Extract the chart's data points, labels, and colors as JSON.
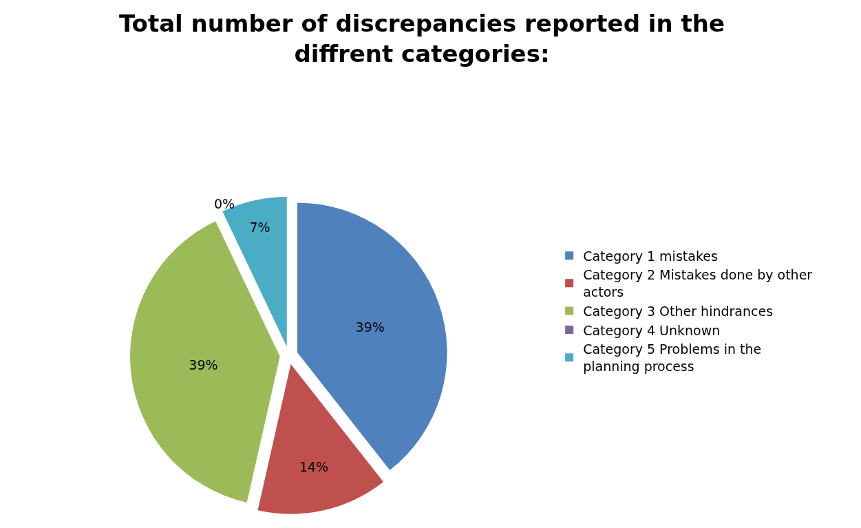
{
  "chart_data": {
    "type": "pie",
    "title": "Total number of discrepancies reported in the diffrent categories:",
    "categories": [
      "Category 1 mistakes",
      "Category 2 Mistakes done by other actors",
      "Category 3 Other hindrances",
      "Category 4 Unknown",
      "Category 5 Problems in the planning process"
    ],
    "values": [
      39,
      14,
      39,
      0,
      7
    ],
    "value_labels": [
      "39%",
      "14%",
      "39%",
      "0%",
      "7%"
    ],
    "colors": [
      "#4f81bd",
      "#c0504d",
      "#9bbb59",
      "#8064a2",
      "#4bacc6"
    ],
    "legend": "right"
  }
}
